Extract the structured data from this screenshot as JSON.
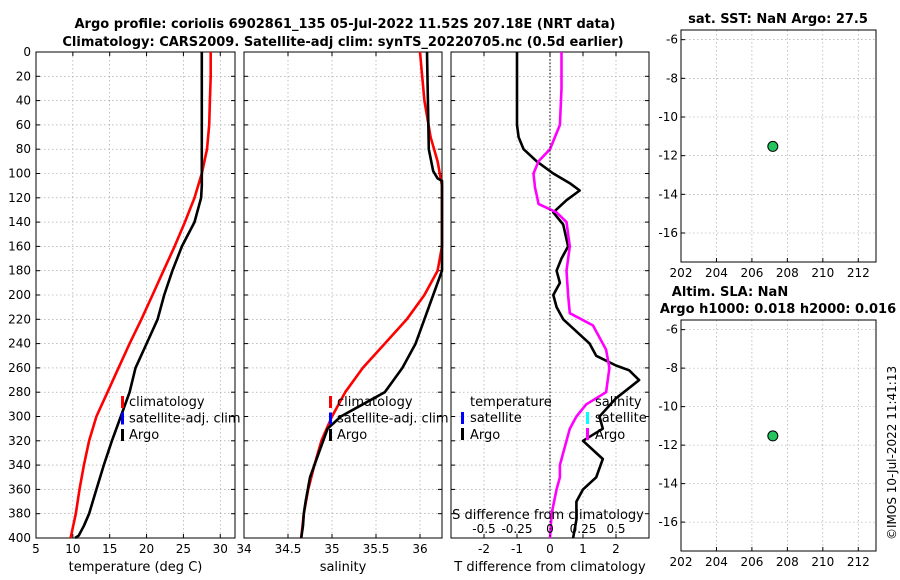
{
  "title_line1": "Argo profile: coriolis 6902861_135 05-Jul-2022 11.52S 207.18E (NRT data)",
  "title_line2": "Climatology: CARS2009. Satellite-adj clim: synTS_20220705.nc (0.5d earlier)",
  "watermark": "©IMOS 10-Jul-2022 11:41:13",
  "colors": {
    "climatology": "#ff0000",
    "satellite": "#0000ff",
    "argo": "#000000",
    "salinity_diff": "#ff00ff",
    "satellite_s": "#00ffff",
    "marker": "#22c55e"
  },
  "chart_data": [
    {
      "type": "line",
      "name": "temperature",
      "xlabel": "temperature (deg C)",
      "ylabel": "",
      "xlim": [
        5,
        32
      ],
      "ylim": [
        0,
        400
      ],
      "y_reversed": true,
      "xticks": [
        5,
        10,
        15,
        20,
        25,
        30
      ],
      "yticks": [
        0,
        20,
        40,
        60,
        80,
        100,
        120,
        140,
        160,
        180,
        200,
        220,
        240,
        260,
        280,
        300,
        320,
        340,
        360,
        380,
        400
      ],
      "legend": [
        "climatology",
        "satellite-adj. clim",
        "Argo"
      ],
      "series": [
        {
          "name": "climatology",
          "color": "#ff0000",
          "x": [
            28.7,
            28.7,
            28.6,
            28.5,
            28.2,
            27.5,
            26.5,
            25.2,
            23.8,
            22.3,
            20.8,
            19.3,
            17.7,
            16.2,
            14.7,
            13.2,
            12.2,
            11.5,
            10.9,
            10.4,
            9.7
          ],
          "y": [
            0,
            20,
            40,
            60,
            80,
            100,
            120,
            140,
            160,
            180,
            200,
            220,
            240,
            260,
            280,
            300,
            320,
            340,
            360,
            380,
            400
          ]
        },
        {
          "name": "Argo",
          "color": "#000000",
          "x": [
            27.5,
            27.5,
            27.5,
            27.5,
            27.5,
            27.5,
            27.4,
            26.5,
            24.8,
            23.5,
            22.4,
            21.5,
            20.0,
            18.5,
            17.7,
            16.5,
            15.3,
            14.2,
            13.2,
            12.2,
            11.5,
            10.8,
            10.3
          ],
          "y": [
            0,
            40,
            70,
            90,
            100,
            110,
            120,
            140,
            160,
            180,
            200,
            220,
            240,
            260,
            280,
            300,
            320,
            340,
            360,
            380,
            390,
            398,
            400
          ]
        }
      ]
    },
    {
      "type": "line",
      "name": "salinity",
      "xlabel": "salinity",
      "xlim": [
        34,
        36.25
      ],
      "ylim": [
        0,
        400
      ],
      "y_reversed": true,
      "xticks": [
        34,
        34.5,
        35,
        35.5,
        36
      ],
      "legend": [
        "climatology",
        "satellite-adj. clim",
        "Argo"
      ],
      "series": [
        {
          "name": "climatology",
          "color": "#ff0000",
          "x": [
            36.0,
            36.05,
            36.12,
            36.2,
            36.25,
            36.25,
            36.2,
            36.05,
            35.85,
            35.6,
            35.35,
            35.15,
            35.0,
            34.88,
            34.8,
            34.73,
            34.68,
            34.65
          ],
          "y": [
            0,
            40,
            70,
            90,
            110,
            160,
            180,
            200,
            220,
            240,
            260,
            280,
            300,
            320,
            340,
            360,
            380,
            400
          ]
        },
        {
          "name": "Argo",
          "color": "#000000",
          "x": [
            36.08,
            36.09,
            36.1,
            36.15,
            36.2,
            36.25,
            36.25,
            36.15,
            36.05,
            35.95,
            35.8,
            35.6,
            35.35,
            35.1,
            34.95,
            34.85,
            34.75,
            34.7,
            34.68,
            34.67,
            34.65
          ],
          "y": [
            0,
            40,
            80,
            98,
            104,
            106,
            180,
            200,
            220,
            240,
            260,
            280,
            290,
            300,
            310,
            330,
            350,
            370,
            380,
            390,
            400
          ]
        }
      ]
    },
    {
      "type": "line",
      "name": "difference",
      "xlabel": "T difference from climatology",
      "xlabel_top": "S difference from climatology",
      "xlim": [
        -3,
        3
      ],
      "ylim": [
        0,
        400
      ],
      "y_reversed": true,
      "xticks": [
        -2,
        -1,
        0,
        1,
        2
      ],
      "xticks_top": [
        {
          "value": -2,
          "label": "-0.5"
        },
        {
          "value": -1,
          "label": "-0.25"
        },
        {
          "value": 0,
          "label": "0"
        },
        {
          "value": 1,
          "label": "0.25"
        },
        {
          "value": 2,
          "label": "0.5"
        }
      ],
      "legend_left": {
        "title": "temperature",
        "items": [
          "satellite",
          "Argo"
        ]
      },
      "legend_right": {
        "title": "salinity",
        "items": [
          "satellite",
          "Argo"
        ]
      },
      "series": [
        {
          "name": "T difference Argo",
          "color": "#000000",
          "x": [
            -1.0,
            -1.0,
            -1.0,
            -0.95,
            -0.8,
            -0.4,
            0.1,
            0.6,
            0.9,
            0.5,
            0.1,
            0.4,
            0.55,
            0.35,
            0.2,
            0.3,
            0.1,
            0.2,
            0.4,
            0.8,
            1.2,
            1.4,
            2.0,
            2.4,
            2.7,
            2.0,
            1.5,
            1.6,
            1.0,
            1.6,
            1.4,
            1.0,
            0.8,
            0.8,
            0.7
          ],
          "y": [
            0,
            30,
            60,
            70,
            80,
            90,
            100,
            108,
            114,
            122,
            132,
            142,
            160,
            170,
            180,
            190,
            200,
            210,
            220,
            230,
            240,
            250,
            258,
            262,
            270,
            285,
            300,
            310,
            320,
            335,
            350,
            360,
            370,
            385,
            400
          ]
        },
        {
          "name": "S difference Argo",
          "color": "#ff00ff",
          "x": [
            0.35,
            0.35,
            0.3,
            0.0,
            -0.35,
            -0.5,
            -0.45,
            -0.4,
            -0.35,
            0.2,
            0.5,
            0.6,
            0.5,
            0.55,
            0.6,
            1.3,
            1.5,
            1.7,
            1.8,
            1.7,
            1.1,
            0.8,
            0.6,
            0.5,
            0.4,
            0.3,
            0.3,
            0.2,
            0.05,
            0.0
          ],
          "y": [
            0,
            30,
            60,
            80,
            90,
            100,
            112,
            118,
            125,
            132,
            140,
            160,
            180,
            200,
            215,
            225,
            235,
            245,
            260,
            280,
            290,
            300,
            310,
            320,
            330,
            340,
            350,
            360,
            380,
            400
          ]
        }
      ]
    },
    {
      "type": "scatter",
      "name": "sat-sst-map",
      "title": "sat. SST: NaN Argo: 27.5",
      "xlim": [
        202,
        213
      ],
      "ylim": [
        -17.5,
        -5.5
      ],
      "xticks": [
        202,
        204,
        206,
        208,
        210,
        212
      ],
      "yticks": [
        -6,
        -8,
        -10,
        -12,
        -14,
        -16
      ],
      "points": [
        {
          "x": 207.18,
          "y": -11.52
        }
      ]
    },
    {
      "type": "scatter",
      "name": "altim-sla-map",
      "title_line1": "Altim. SLA: NaN",
      "title_line2": "Argo h1000: 0.018 h2000: 0.016",
      "xlim": [
        202,
        213
      ],
      "ylim": [
        -17.5,
        -5.5
      ],
      "xticks": [
        202,
        204,
        206,
        208,
        210,
        212
      ],
      "yticks": [
        -6,
        -8,
        -10,
        -12,
        -14,
        -16
      ],
      "points": [
        {
          "x": 207.18,
          "y": -11.52
        }
      ]
    }
  ]
}
